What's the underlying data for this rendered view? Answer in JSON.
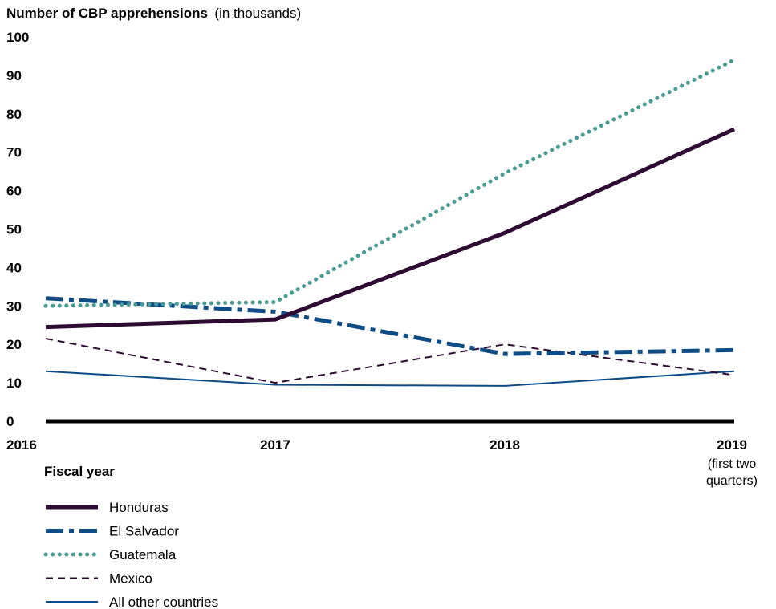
{
  "chart_data": {
    "type": "line",
    "title": "Number of CBP apprehensions",
    "title_unit": "(in thousands)",
    "xlabel": "Fiscal year",
    "ylim": [
      0,
      100
    ],
    "yticks": [
      0,
      10,
      20,
      30,
      40,
      50,
      60,
      70,
      80,
      90,
      100
    ],
    "grid": false,
    "legend_placement": "bottom-left",
    "x": [
      "2016",
      "2017",
      "2018",
      "2019"
    ],
    "x_sublabels": [
      "",
      "",
      "",
      "(first two|quarters)"
    ],
    "series": [
      {
        "name": "Honduras",
        "values": [
          24.5,
          26.5,
          49,
          76
        ],
        "color": "#2e0b33",
        "style": "solid-thick"
      },
      {
        "name": "El Salvador",
        "values": [
          32,
          28.5,
          17.5,
          18.5
        ],
        "color": "#0e4c86",
        "style": "dashdot"
      },
      {
        "name": "Guatemala",
        "values": [
          30,
          31,
          64.5,
          94
        ],
        "color": "#4a9b96",
        "style": "dotted"
      },
      {
        "name": "Mexico",
        "values": [
          21.5,
          10,
          20,
          12
        ],
        "color": "#2e0b33",
        "style": "dashed"
      },
      {
        "name": "All other countries",
        "values": [
          13,
          9.5,
          9.2,
          13
        ],
        "color": "#0e4c86",
        "style": "solid-thin"
      }
    ]
  }
}
